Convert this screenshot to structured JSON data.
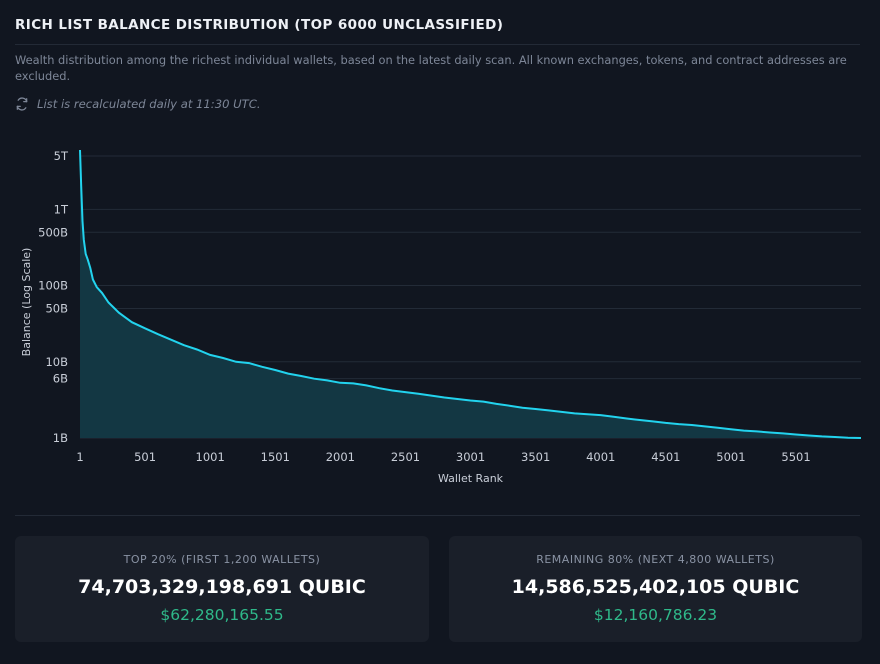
{
  "header": {
    "title": "RICH LIST BALANCE DISTRIBUTION (TOP 6000 UNCLASSIFIED)",
    "description": "Wealth distribution among the richest individual wallets, based on the latest daily scan. All known exchanges, tokens, and contract addresses are excluded.",
    "note": "List is recalculated daily at 11:30 UTC.",
    "note_icon": "refresh-icon"
  },
  "colors": {
    "line": "#22d3ee",
    "area": "#133743",
    "grid": "#232b37",
    "usd": "#2fb98a"
  },
  "chart_data": {
    "type": "area",
    "title": "",
    "xlabel": "Wallet Rank",
    "ylabel": "Balance (Log Scale)",
    "yscale": "log",
    "xlim": [
      1,
      6000
    ],
    "ylim": [
      1000000000,
      6000000000000
    ],
    "x_ticks": [
      1,
      501,
      1001,
      1501,
      2001,
      2501,
      3001,
      3501,
      4001,
      4501,
      5001,
      5501
    ],
    "y_ticks": [
      {
        "value": 1000000000,
        "label": "1B"
      },
      {
        "value": 6000000000,
        "label": "6B"
      },
      {
        "value": 10000000000,
        "label": "10B"
      },
      {
        "value": 50000000000,
        "label": "50B"
      },
      {
        "value": 100000000000,
        "label": "100B"
      },
      {
        "value": 500000000000,
        "label": "500B"
      },
      {
        "value": 1000000000000,
        "label": "1T"
      },
      {
        "value": 5000000000000,
        "label": "5T"
      }
    ],
    "series": [
      {
        "name": "Balance",
        "points": [
          [
            1,
            6000000000000
          ],
          [
            10,
            2000000000000
          ],
          [
            20,
            700000000000
          ],
          [
            30,
            400000000000
          ],
          [
            45,
            260000000000
          ],
          [
            60,
            220000000000
          ],
          [
            80,
            170000000000
          ],
          [
            100,
            120000000000
          ],
          [
            130,
            95000000000
          ],
          [
            170,
            80000000000
          ],
          [
            220,
            60000000000
          ],
          [
            300,
            44000000000
          ],
          [
            400,
            33000000000
          ],
          [
            500,
            27500000000
          ],
          [
            600,
            23000000000
          ],
          [
            700,
            19500000000
          ],
          [
            800,
            16500000000
          ],
          [
            900,
            14500000000
          ],
          [
            1000,
            12300000000
          ],
          [
            1100,
            11200000000
          ],
          [
            1200,
            10000000000
          ],
          [
            1300,
            9600000000
          ],
          [
            1400,
            8600000000
          ],
          [
            1500,
            7800000000
          ],
          [
            1600,
            7000000000
          ],
          [
            1700,
            6500000000
          ],
          [
            1800,
            6000000000
          ],
          [
            1900,
            5700000000
          ],
          [
            2000,
            5300000000
          ],
          [
            2100,
            5200000000
          ],
          [
            2200,
            4900000000
          ],
          [
            2300,
            4500000000
          ],
          [
            2400,
            4200000000
          ],
          [
            2500,
            4000000000
          ],
          [
            2600,
            3800000000
          ],
          [
            2700,
            3600000000
          ],
          [
            2800,
            3400000000
          ],
          [
            2900,
            3250000000
          ],
          [
            3000,
            3100000000
          ],
          [
            3100,
            3000000000
          ],
          [
            3200,
            2800000000
          ],
          [
            3300,
            2650000000
          ],
          [
            3400,
            2500000000
          ],
          [
            3500,
            2400000000
          ],
          [
            3600,
            2300000000
          ],
          [
            3700,
            2200000000
          ],
          [
            3800,
            2100000000
          ],
          [
            3900,
            2050000000
          ],
          [
            4000,
            2000000000
          ],
          [
            4100,
            1900000000
          ],
          [
            4200,
            1800000000
          ],
          [
            4300,
            1720000000
          ],
          [
            4400,
            1650000000
          ],
          [
            4500,
            1580000000
          ],
          [
            4600,
            1520000000
          ],
          [
            4700,
            1480000000
          ],
          [
            4800,
            1420000000
          ],
          [
            4900,
            1360000000
          ],
          [
            5000,
            1300000000
          ],
          [
            5100,
            1250000000
          ],
          [
            5200,
            1220000000
          ],
          [
            5300,
            1180000000
          ],
          [
            5400,
            1150000000
          ],
          [
            5500,
            1110000000
          ],
          [
            5600,
            1080000000
          ],
          [
            5700,
            1050000000
          ],
          [
            5800,
            1030000000
          ],
          [
            5900,
            1010000000
          ],
          [
            6000,
            1000000000
          ]
        ]
      }
    ]
  },
  "cards": [
    {
      "label": "TOP 20% (FIRST 1,200 WALLETS)",
      "amount": "74,703,329,198,691 QUBIC",
      "usd": "$62,280,165.55"
    },
    {
      "label": "REMAINING 80% (NEXT 4,800 WALLETS)",
      "amount": "14,586,525,402,105 QUBIC",
      "usd": "$12,160,786.23"
    }
  ]
}
